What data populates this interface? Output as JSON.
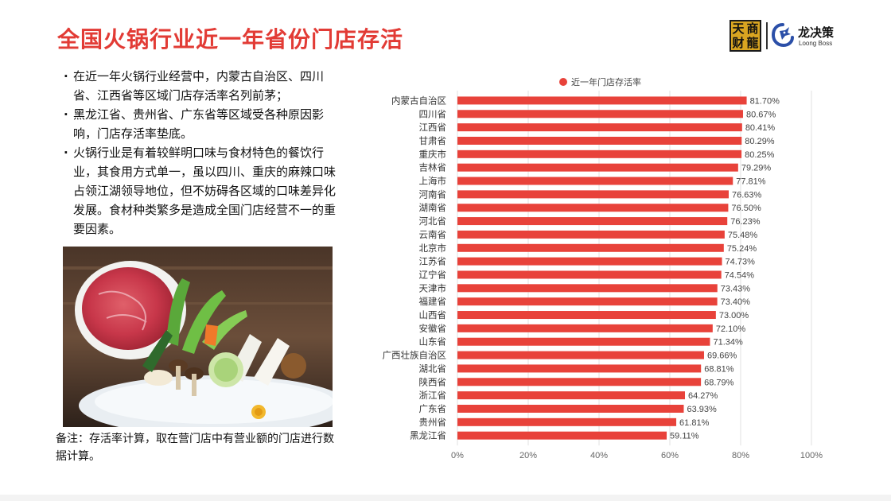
{
  "header": {
    "title": "全国火锅行业近一年省份门店存活",
    "logo_chars": [
      "天",
      "商",
      "财",
      "龍"
    ],
    "brand_cn": "龙决策",
    "brand_en": "Loong Boss"
  },
  "bullets": [
    "在近一年火锅行业经营中，内蒙古自治区、四川省、江西省等区域门店存活率名列前茅；",
    "黑龙江省、贵州省、广东省等区域受各种原因影响，门店存活率垫底。",
    "火锅行业是有着较鲜明口味与食材特色的餐饮行业，其食用方式单一，虽以四川、重庆的麻辣口味占领江湖领导地位，但不妨碍各区域的口味差异化发展。食材种类繁多是造成全国门店经营不一的重要因素。"
  ],
  "note": "备注：存活率计算，取在营门店中有营业额的门店进行数据计算。",
  "colors": {
    "accent": "#e23b35",
    "bar": "#e8423a",
    "grid": "#e2e2e2"
  },
  "chart_data": {
    "type": "bar",
    "orientation": "horizontal",
    "series": [
      {
        "name": "近一年门店存活率",
        "values": [
          81.7,
          80.67,
          80.41,
          80.29,
          80.25,
          79.29,
          77.81,
          76.63,
          76.5,
          76.23,
          75.48,
          75.24,
          74.73,
          74.54,
          73.43,
          73.4,
          73.0,
          72.1,
          71.34,
          69.66,
          68.81,
          68.79,
          64.27,
          63.93,
          61.81,
          59.11
        ]
      }
    ],
    "categories": [
      "内蒙古自治区",
      "四川省",
      "江西省",
      "甘肃省",
      "重庆市",
      "吉林省",
      "上海市",
      "河南省",
      "湖南省",
      "河北省",
      "云南省",
      "北京市",
      "江苏省",
      "辽宁省",
      "天津市",
      "福建省",
      "山西省",
      "安徽省",
      "山东省",
      "广西壮族自治区",
      "湖北省",
      "陕西省",
      "浙江省",
      "广东省",
      "贵州省",
      "黑龙江省"
    ],
    "data_labels": [
      "81.70%",
      "80.67%",
      "80.41%",
      "80.29%",
      "80.25%",
      "79.29%",
      "77.81%",
      "76.63%",
      "76.50%",
      "76.23%",
      "75.48%",
      "75.24%",
      "74.73%",
      "74.54%",
      "73.43%",
      "73.40%",
      "73.00%",
      "72.10%",
      "71.34%",
      "69.66%",
      "68.81%",
      "68.79%",
      "64.27%",
      "63.93%",
      "61.81%",
      "59.11%"
    ],
    "xlim": [
      0,
      100
    ],
    "x_ticks": [
      "0%",
      "20%",
      "40%",
      "60%",
      "80%",
      "100%"
    ],
    "legend_position": "top",
    "grid": true
  }
}
